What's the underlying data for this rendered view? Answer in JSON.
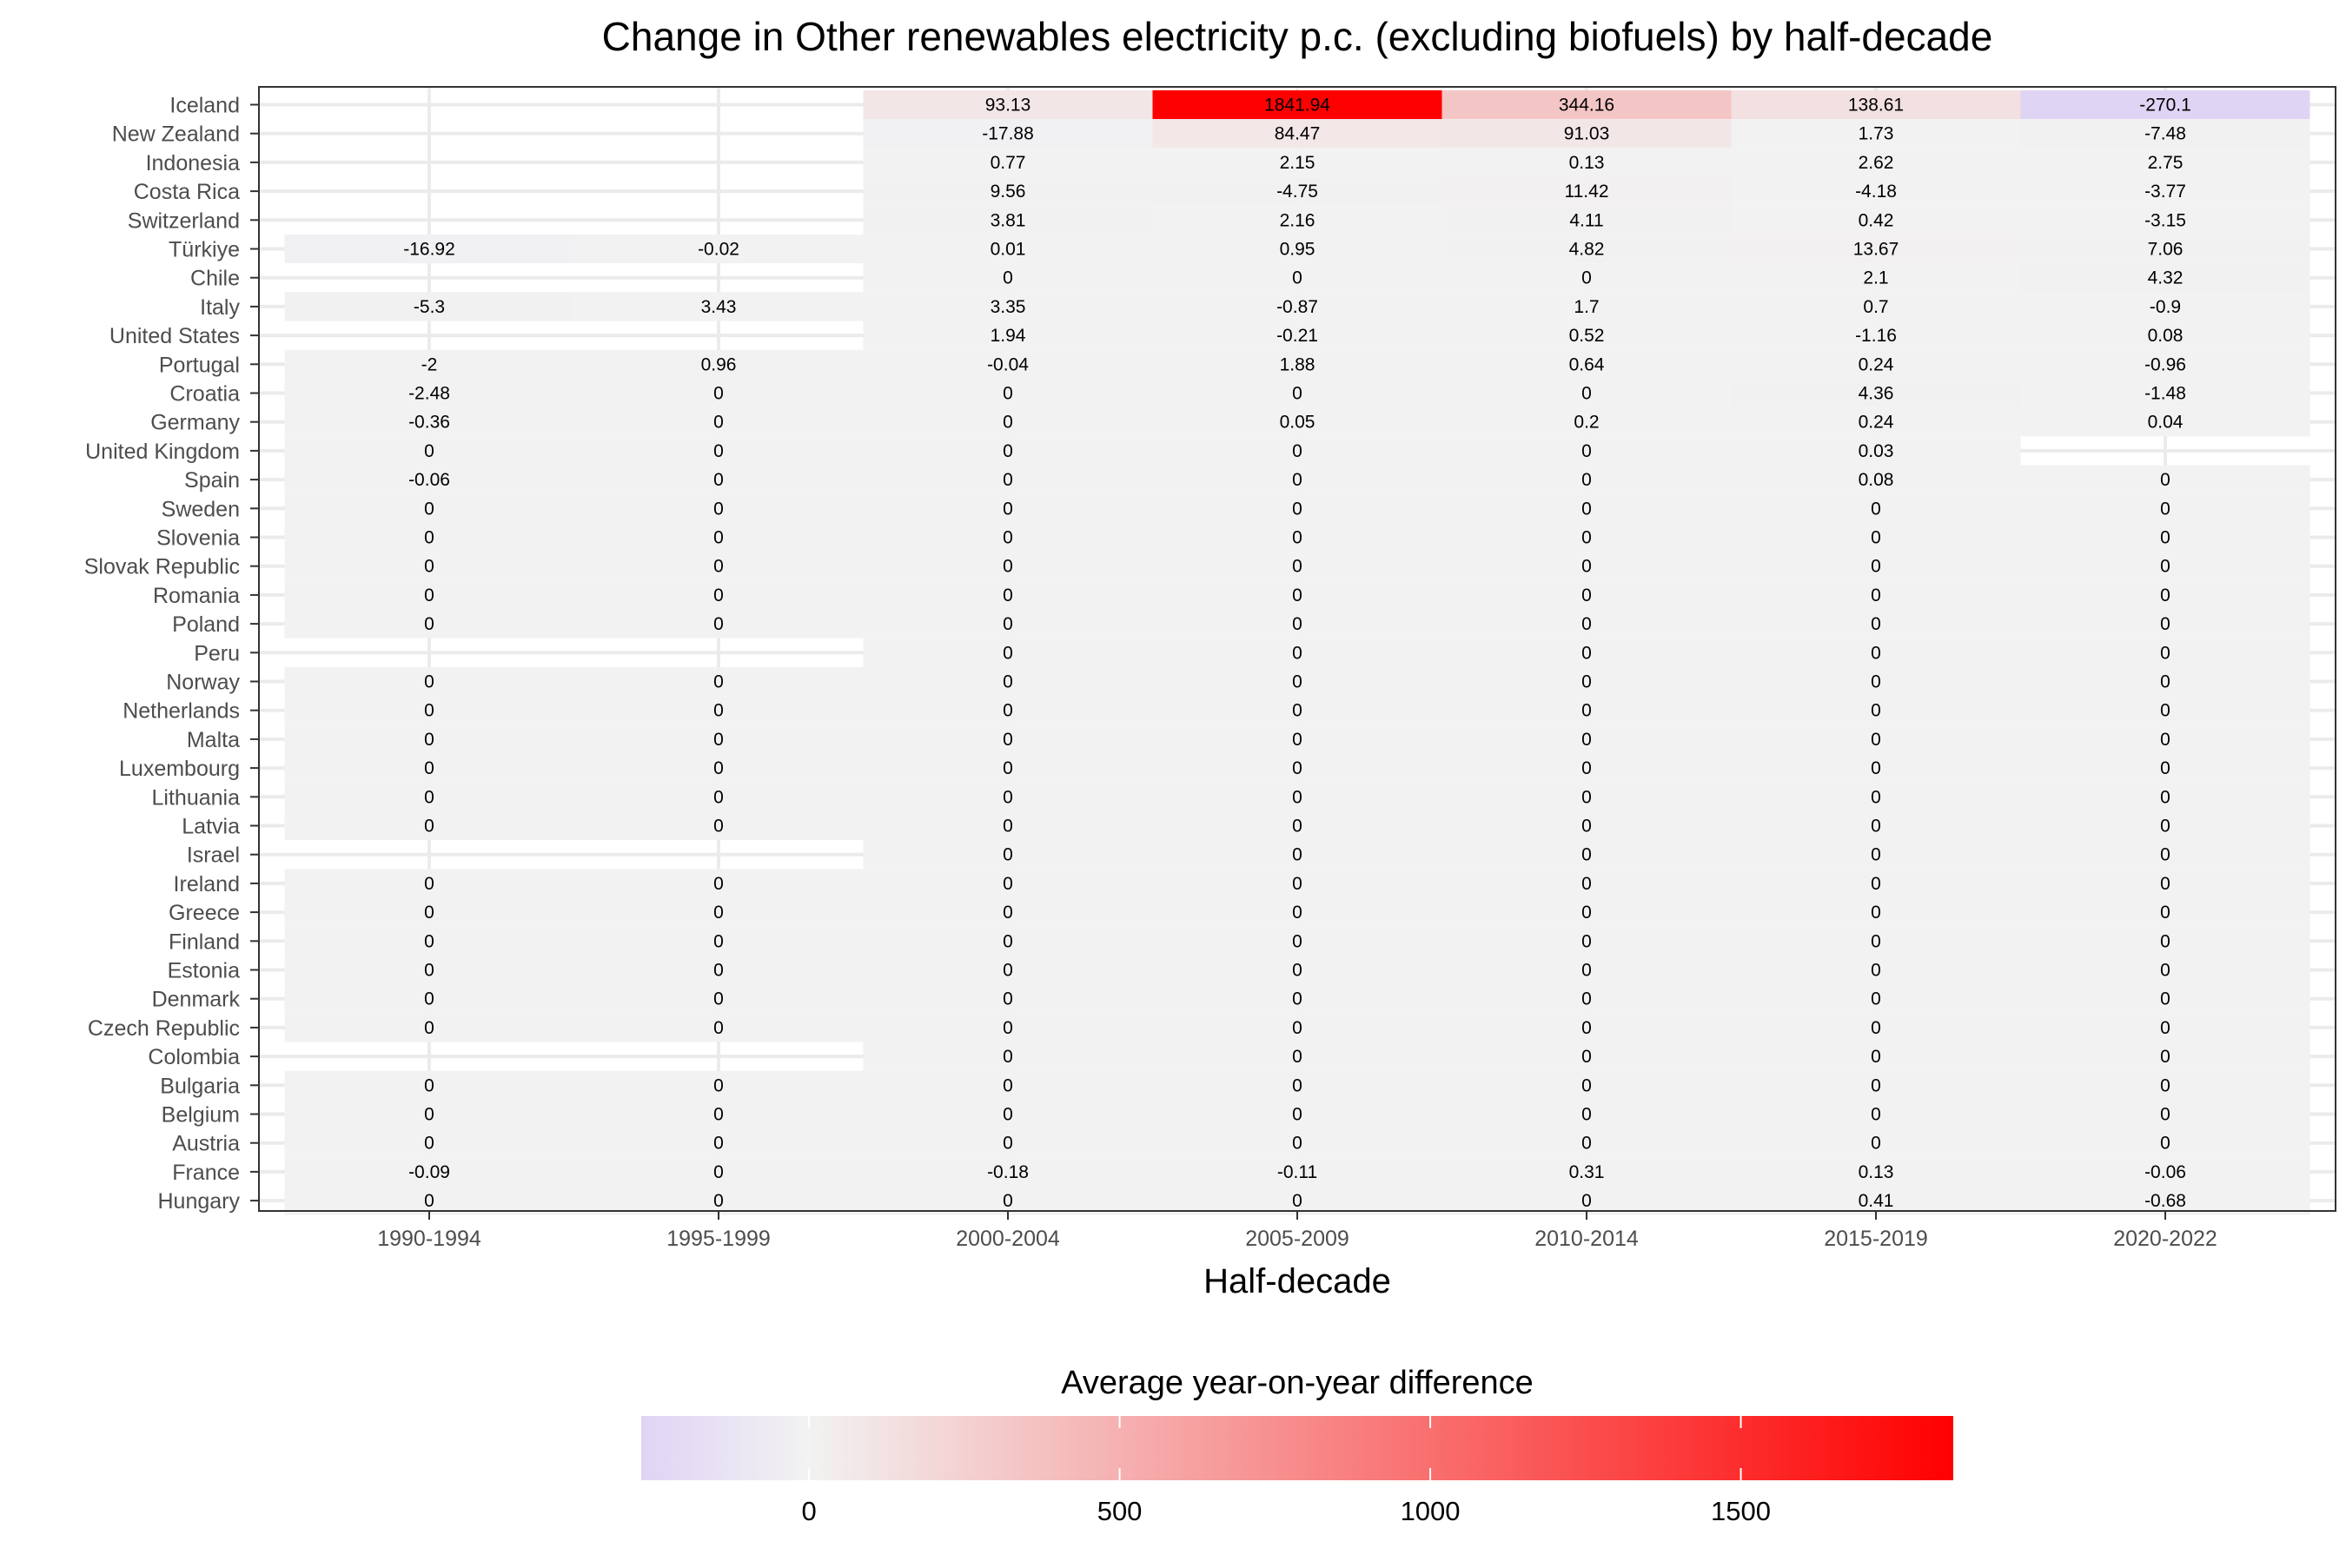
{
  "chart_data": {
    "type": "heatmap",
    "title": "Change in Other renewables electricity p.c. (excluding biofuels) by half-decade",
    "xlabel": "Half-decade",
    "ylabel": "",
    "x_categories": [
      "1990-1994",
      "1995-1999",
      "2000-2004",
      "2005-2009",
      "2010-2014",
      "2015-2019",
      "2020-2022"
    ],
    "y_categories": [
      "Iceland",
      "New Zealand",
      "Indonesia",
      "Costa Rica",
      "Switzerland",
      "Türkiye",
      "Chile",
      "Italy",
      "United States",
      "Portugal",
      "Croatia",
      "Germany",
      "United Kingdom",
      "Spain",
      "Sweden",
      "Slovenia",
      "Slovak Republic",
      "Romania",
      "Poland",
      "Peru",
      "Norway",
      "Netherlands",
      "Malta",
      "Luxembourg",
      "Lithuania",
      "Latvia",
      "Israel",
      "Ireland",
      "Greece",
      "Finland",
      "Estonia",
      "Denmark",
      "Czech Republic",
      "Colombia",
      "Bulgaria",
      "Belgium",
      "Austria",
      "France",
      "Hungary"
    ],
    "values": [
      [
        null,
        null,
        93.13,
        1841.94,
        344.16,
        138.61,
        -270.1
      ],
      [
        null,
        null,
        -17.88,
        84.47,
        91.03,
        1.73,
        -7.48
      ],
      [
        null,
        null,
        0.77,
        2.15,
        0.13,
        2.62,
        2.75
      ],
      [
        null,
        null,
        9.56,
        -4.75,
        11.42,
        -4.18,
        -3.77
      ],
      [
        null,
        null,
        3.81,
        2.16,
        4.11,
        0.42,
        -3.15
      ],
      [
        -16.92,
        -0.02,
        0.01,
        0.95,
        4.82,
        13.67,
        7.06
      ],
      [
        null,
        null,
        0,
        0,
        0,
        2.1,
        4.32
      ],
      [
        -5.3,
        3.43,
        3.35,
        -0.87,
        1.7,
        0.7,
        -0.9
      ],
      [
        null,
        null,
        1.94,
        -0.21,
        0.52,
        -1.16,
        0.08
      ],
      [
        -2,
        0.96,
        -0.04,
        1.88,
        0.64,
        0.24,
        -0.96
      ],
      [
        -2.48,
        0,
        0,
        0,
        0,
        4.36,
        -1.48
      ],
      [
        -0.36,
        0,
        0,
        0.05,
        0.2,
        0.24,
        0.04
      ],
      [
        0,
        0,
        0,
        0,
        0,
        0.03,
        null
      ],
      [
        -0.06,
        0,
        0,
        0,
        0,
        0.08,
        0
      ],
      [
        0,
        0,
        0,
        0,
        0,
        0,
        0
      ],
      [
        0,
        0,
        0,
        0,
        0,
        0,
        0
      ],
      [
        0,
        0,
        0,
        0,
        0,
        0,
        0
      ],
      [
        0,
        0,
        0,
        0,
        0,
        0,
        0
      ],
      [
        0,
        0,
        0,
        0,
        0,
        0,
        0
      ],
      [
        null,
        null,
        0,
        0,
        0,
        0,
        0
      ],
      [
        0,
        0,
        0,
        0,
        0,
        0,
        0
      ],
      [
        0,
        0,
        0,
        0,
        0,
        0,
        0
      ],
      [
        0,
        0,
        0,
        0,
        0,
        0,
        0
      ],
      [
        0,
        0,
        0,
        0,
        0,
        0,
        0
      ],
      [
        0,
        0,
        0,
        0,
        0,
        0,
        0
      ],
      [
        0,
        0,
        0,
        0,
        0,
        0,
        0
      ],
      [
        null,
        null,
        0,
        0,
        0,
        0,
        0
      ],
      [
        0,
        0,
        0,
        0,
        0,
        0,
        0
      ],
      [
        0,
        0,
        0,
        0,
        0,
        0,
        0
      ],
      [
        0,
        0,
        0,
        0,
        0,
        0,
        0
      ],
      [
        0,
        0,
        0,
        0,
        0,
        0,
        0
      ],
      [
        0,
        0,
        0,
        0,
        0,
        0,
        0
      ],
      [
        0,
        0,
        0,
        0,
        0,
        0,
        0
      ],
      [
        null,
        null,
        0,
        0,
        0,
        0,
        0
      ],
      [
        0,
        0,
        0,
        0,
        0,
        0,
        0
      ],
      [
        0,
        0,
        0,
        0,
        0,
        0,
        0
      ],
      [
        0,
        0,
        0,
        0,
        0,
        0,
        0
      ],
      [
        -0.09,
        0,
        -0.18,
        -0.11,
        0.31,
        0.13,
        -0.06
      ],
      [
        0,
        0,
        0,
        0,
        0,
        0.41,
        -0.68
      ]
    ],
    "legend": {
      "title": "Average year-on-year difference",
      "position": "bottom",
      "range": [
        -270.1,
        1841.94
      ],
      "ticks": [
        "0",
        "500",
        "1000",
        "1500"
      ],
      "tick_values": [
        0,
        500,
        1000,
        1500
      ]
    },
    "colors": {
      "low": "#e0d4f5",
      "mid": "#f2f2f2",
      "high": "#ff0000"
    },
    "grid": true
  }
}
